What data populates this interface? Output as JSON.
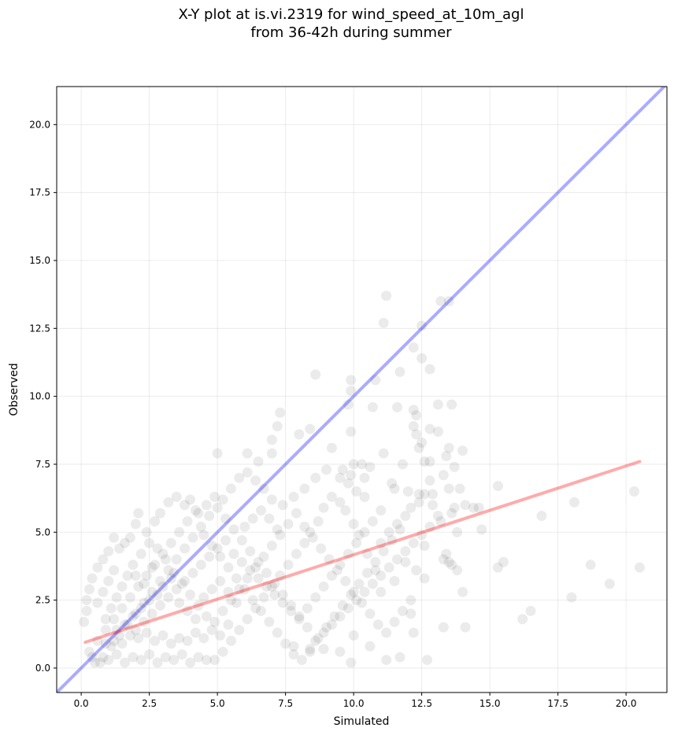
{
  "chart_data": {
    "type": "scatter",
    "title_line1": "X-Y plot at is.vi.2319 for wind_speed_at_10m_agl",
    "title_line2": "from 36-42h during summer",
    "xlabel": "Simulated",
    "ylabel": "Observed",
    "xlim": [
      -0.9,
      21.5
    ],
    "ylim": [
      -0.9,
      21.4
    ],
    "xticks": [
      "0.0",
      "2.5",
      "5.0",
      "7.5",
      "10.0",
      "12.5",
      "15.0",
      "17.5",
      "20.0"
    ],
    "yticks": [
      "0.0",
      "2.5",
      "5.0",
      "7.5",
      "10.0",
      "12.5",
      "15.0",
      "17.5",
      "20.0"
    ],
    "grid": true,
    "point_color": "#000000",
    "point_alpha": 0.08,
    "identity_line": {
      "color": "#0000ff",
      "x": [
        -0.9,
        21.5
      ],
      "y": [
        -0.9,
        21.5
      ]
    },
    "fit_line": {
      "color": "#ff0000",
      "x": [
        0.15,
        20.5
      ],
      "y": [
        0.95,
        7.6
      ]
    },
    "points": [
      [
        11.2,
        13.7
      ],
      [
        13.5,
        13.5
      ],
      [
        13.2,
        13.5
      ],
      [
        11.1,
        12.7
      ],
      [
        12.5,
        12.6
      ],
      [
        12.2,
        11.8
      ],
      [
        12.5,
        11.4
      ],
      [
        12.8,
        11.0
      ],
      [
        11.7,
        10.9
      ],
      [
        8.6,
        10.8
      ],
      [
        9.9,
        10.6
      ],
      [
        10.8,
        10.6
      ],
      [
        9.9,
        10.2
      ],
      [
        9.8,
        9.7
      ],
      [
        10.7,
        9.6
      ],
      [
        11.6,
        9.6
      ],
      [
        13.1,
        9.7
      ],
      [
        13.6,
        9.7
      ],
      [
        12.2,
        9.5
      ],
      [
        12.3,
        9.3
      ],
      [
        7.3,
        9.4
      ],
      [
        7.2,
        8.9
      ],
      [
        12.2,
        8.9
      ],
      [
        12.3,
        8.6
      ],
      [
        9.9,
        8.7
      ],
      [
        8.4,
        8.8
      ],
      [
        8.0,
        8.6
      ],
      [
        12.5,
        8.3
      ],
      [
        12.8,
        8.8
      ],
      [
        7.0,
        8.4
      ],
      [
        13.1,
        8.7
      ],
      [
        9.2,
        8.1
      ],
      [
        12.4,
        8.1
      ],
      [
        13.5,
        8.1
      ],
      [
        14.0,
        8.0
      ],
      [
        11.1,
        7.9
      ],
      [
        5.0,
        7.9
      ],
      [
        6.1,
        7.9
      ],
      [
        7.0,
        7.9
      ],
      [
        6.5,
        7.6
      ],
      [
        12.6,
        7.6
      ],
      [
        12.8,
        7.6
      ],
      [
        13.4,
        7.8
      ],
      [
        10.0,
        7.5
      ],
      [
        10.3,
        7.5
      ],
      [
        10.6,
        7.4
      ],
      [
        11.8,
        7.5
      ],
      [
        9.6,
        7.3
      ],
      [
        9.9,
        7.1
      ],
      [
        10.4,
        7.0
      ],
      [
        13.7,
        7.4
      ],
      [
        13.3,
        7.1
      ],
      [
        12.8,
        6.9
      ],
      [
        11.4,
        6.8
      ],
      [
        11.5,
        6.6
      ],
      [
        12.0,
        6.5
      ],
      [
        12.4,
        6.4
      ],
      [
        12.9,
        6.4
      ],
      [
        13.5,
        6.6
      ],
      [
        13.9,
        6.6
      ],
      [
        14.6,
        5.9
      ],
      [
        14.4,
        5.9
      ],
      [
        14.1,
        6.0
      ],
      [
        13.7,
        5.9
      ],
      [
        15.3,
        6.7
      ],
      [
        13.6,
        5.7
      ],
      [
        13.2,
        5.4
      ],
      [
        14.7,
        5.1
      ],
      [
        13.8,
        5.0
      ],
      [
        13.4,
        4.2
      ],
      [
        13.3,
        4.0
      ],
      [
        13.5,
        3.9
      ],
      [
        13.6,
        3.8
      ],
      [
        13.8,
        3.6
      ],
      [
        14.0,
        2.8
      ],
      [
        14.1,
        1.5
      ],
      [
        13.3,
        1.5
      ],
      [
        15.3,
        3.7
      ],
      [
        15.5,
        3.9
      ],
      [
        16.9,
        5.6
      ],
      [
        18.1,
        6.1
      ],
      [
        20.3,
        6.5
      ],
      [
        20.5,
        3.7
      ],
      [
        18.7,
        3.8
      ],
      [
        19.4,
        3.1
      ],
      [
        18.0,
        2.6
      ],
      [
        16.5,
        2.1
      ],
      [
        16.2,
        1.8
      ],
      [
        12.2,
        1.3
      ],
      [
        12.7,
        0.3
      ],
      [
        12.1,
        2.0
      ],
      [
        11.7,
        0.4
      ],
      [
        11.2,
        0.3
      ],
      [
        10.6,
        0.8
      ],
      [
        9.9,
        0.2
      ],
      [
        10.0,
        1.2
      ],
      [
        9.5,
        0.6
      ],
      [
        8.9,
        0.7
      ],
      [
        8.4,
        0.6
      ],
      [
        7.8,
        0.8
      ],
      [
        12.6,
        3.3
      ],
      [
        12.3,
        3.6
      ],
      [
        12.6,
        4.5
      ],
      [
        11.9,
        3.9
      ],
      [
        11.5,
        3.2
      ],
      [
        11.0,
        2.8
      ],
      [
        10.8,
        3.6
      ],
      [
        10.5,
        4.2
      ],
      [
        10.2,
        4.9
      ],
      [
        10.0,
        5.3
      ],
      [
        9.7,
        5.8
      ],
      [
        9.5,
        6.1
      ],
      [
        9.2,
        6.3
      ],
      [
        8.9,
        5.9
      ],
      [
        8.7,
        5.4
      ],
      [
        8.4,
        5.0
      ],
      [
        8.2,
        4.6
      ],
      [
        7.9,
        4.2
      ],
      [
        7.6,
        3.8
      ],
      [
        7.3,
        3.4
      ],
      [
        7.0,
        3.0
      ],
      [
        6.7,
        2.6
      ],
      [
        6.4,
        2.2
      ],
      [
        6.1,
        1.8
      ],
      [
        5.8,
        1.4
      ],
      [
        5.5,
        1.0
      ],
      [
        5.2,
        0.6
      ],
      [
        4.9,
        0.3
      ],
      [
        10.4,
        6.3
      ],
      [
        10.1,
        6.5
      ],
      [
        9.8,
        6.8
      ],
      [
        9.5,
        7.0
      ],
      [
        9.0,
        7.3
      ],
      [
        8.6,
        7.0
      ],
      [
        8.2,
        6.6
      ],
      [
        7.8,
        6.3
      ],
      [
        7.4,
        6.0
      ],
      [
        7.0,
        6.2
      ],
      [
        6.7,
        6.6
      ],
      [
        6.4,
        6.9
      ],
      [
        6.1,
        7.2
      ],
      [
        5.8,
        7.0
      ],
      [
        5.5,
        6.6
      ],
      [
        5.2,
        6.2
      ],
      [
        4.9,
        6.3
      ],
      [
        4.6,
        6.0
      ],
      [
        4.3,
        5.7
      ],
      [
        4.0,
        6.2
      ],
      [
        3.8,
        6.0
      ],
      [
        3.5,
        6.3
      ],
      [
        3.2,
        6.1
      ],
      [
        2.9,
        5.7
      ],
      [
        2.7,
        5.4
      ],
      [
        2.4,
        5.0
      ],
      [
        2.1,
        5.7
      ],
      [
        2.0,
        5.3
      ],
      [
        1.8,
        4.8
      ],
      [
        1.6,
        4.6
      ],
      [
        1.4,
        4.4
      ],
      [
        1.2,
        4.8
      ],
      [
        1.0,
        4.3
      ],
      [
        0.8,
        4.0
      ],
      [
        0.6,
        3.7
      ],
      [
        0.4,
        3.3
      ],
      [
        0.3,
        2.9
      ],
      [
        0.2,
        2.5
      ],
      [
        0.2,
        2.1
      ],
      [
        0.1,
        1.7
      ],
      [
        11.0,
        4.6
      ],
      [
        11.3,
        5.0
      ],
      [
        11.6,
        5.3
      ],
      [
        11.9,
        5.6
      ],
      [
        12.1,
        5.9
      ],
      [
        12.4,
        6.1
      ],
      [
        12.6,
        6.4
      ],
      [
        12.9,
        6.0
      ],
      [
        13.1,
        5.6
      ],
      [
        12.8,
        5.2
      ],
      [
        12.5,
        4.9
      ],
      [
        12.2,
        4.6
      ],
      [
        11.9,
        4.3
      ],
      [
        11.6,
        4.0
      ],
      [
        11.3,
        3.7
      ],
      [
        11.0,
        3.4
      ],
      [
        10.7,
        3.1
      ],
      [
        10.4,
        2.8
      ],
      [
        10.1,
        2.5
      ],
      [
        9.8,
        2.2
      ],
      [
        9.5,
        1.9
      ],
      [
        9.2,
        1.6
      ],
      [
        8.9,
        1.3
      ],
      [
        8.6,
        1.0
      ],
      [
        8.3,
        1.5
      ],
      [
        8.0,
        1.9
      ],
      [
        7.7,
        2.3
      ],
      [
        7.4,
        2.7
      ],
      [
        7.1,
        3.1
      ],
      [
        6.8,
        3.5
      ],
      [
        6.5,
        3.9
      ],
      [
        6.2,
        4.3
      ],
      [
        5.9,
        4.7
      ],
      [
        5.6,
        5.1
      ],
      [
        5.3,
        5.5
      ],
      [
        5.0,
        5.9
      ],
      [
        4.7,
        5.6
      ],
      [
        4.4,
        5.2
      ],
      [
        4.1,
        4.8
      ],
      [
        3.8,
        4.4
      ],
      [
        3.5,
        4.0
      ],
      [
        3.2,
        3.6
      ],
      [
        2.9,
        3.2
      ],
      [
        2.6,
        2.8
      ],
      [
        2.3,
        2.4
      ],
      [
        2.0,
        2.0
      ],
      [
        1.7,
        1.6
      ],
      [
        1.4,
        1.2
      ],
      [
        1.1,
        0.8
      ],
      [
        0.8,
        0.4
      ],
      [
        0.5,
        0.2
      ],
      [
        0.3,
        0.6
      ],
      [
        0.6,
        1.0
      ],
      [
        0.9,
        1.4
      ],
      [
        1.2,
        1.8
      ],
      [
        1.5,
        2.2
      ],
      [
        1.8,
        2.6
      ],
      [
        2.1,
        3.0
      ],
      [
        2.4,
        3.4
      ],
      [
        2.7,
        3.8
      ],
      [
        3.0,
        4.2
      ],
      [
        3.3,
        4.6
      ],
      [
        3.6,
        5.0
      ],
      [
        3.9,
        5.4
      ],
      [
        4.2,
        5.8
      ],
      [
        4.5,
        4.9
      ],
      [
        4.8,
        4.5
      ],
      [
        5.1,
        4.1
      ],
      [
        5.4,
        3.7
      ],
      [
        5.7,
        3.3
      ],
      [
        6.0,
        2.9
      ],
      [
        6.3,
        2.5
      ],
      [
        6.6,
        2.1
      ],
      [
        6.9,
        1.7
      ],
      [
        7.2,
        1.3
      ],
      [
        7.5,
        0.9
      ],
      [
        7.8,
        0.5
      ],
      [
        8.1,
        0.3
      ],
      [
        8.4,
        0.7
      ],
      [
        8.7,
        1.1
      ],
      [
        9.0,
        1.5
      ],
      [
        9.3,
        1.9
      ],
      [
        9.6,
        2.3
      ],
      [
        9.9,
        2.7
      ],
      [
        10.2,
        3.1
      ],
      [
        10.5,
        3.5
      ],
      [
        10.8,
        3.9
      ],
      [
        11.1,
        4.3
      ],
      [
        11.4,
        4.7
      ],
      [
        11.7,
        5.1
      ],
      [
        1.0,
        0.3
      ],
      [
        1.3,
        0.5
      ],
      [
        1.6,
        0.2
      ],
      [
        1.9,
        0.4
      ],
      [
        2.2,
        0.3
      ],
      [
        2.5,
        0.5
      ],
      [
        2.8,
        0.2
      ],
      [
        3.1,
        0.4
      ],
      [
        3.4,
        0.3
      ],
      [
        3.7,
        0.5
      ],
      [
        4.0,
        0.2
      ],
      [
        4.3,
        0.4
      ],
      [
        4.6,
        0.3
      ],
      [
        0.4,
        0.4
      ],
      [
        0.7,
        0.2
      ],
      [
        1.2,
        1.0
      ],
      [
        1.5,
        0.9
      ],
      [
        1.8,
        1.2
      ],
      [
        2.1,
        1.1
      ],
      [
        2.4,
        1.3
      ],
      [
        2.7,
        1.0
      ],
      [
        3.0,
        1.2
      ],
      [
        3.3,
        0.9
      ],
      [
        3.6,
        1.1
      ],
      [
        3.9,
        1.0
      ],
      [
        4.2,
        1.3
      ],
      [
        4.5,
        1.1
      ],
      [
        4.8,
        1.4
      ],
      [
        5.1,
        1.2
      ],
      [
        5.4,
        1.6
      ],
      [
        0.9,
        1.8
      ],
      [
        1.1,
        2.2
      ],
      [
        1.3,
        2.6
      ],
      [
        1.5,
        3.0
      ],
      [
        1.7,
        3.4
      ],
      [
        1.9,
        3.8
      ],
      [
        2.2,
        4.2
      ],
      [
        2.5,
        4.6
      ],
      [
        2.8,
        4.4
      ],
      [
        3.1,
        4.0
      ],
      [
        3.4,
        3.5
      ],
      [
        3.7,
        3.1
      ],
      [
        4.0,
        2.7
      ],
      [
        4.3,
        2.3
      ],
      [
        4.6,
        1.9
      ],
      [
        4.9,
        1.7
      ],
      [
        5.2,
        2.1
      ],
      [
        5.5,
        2.5
      ],
      [
        5.8,
        2.9
      ],
      [
        6.1,
        3.3
      ],
      [
        6.4,
        3.7
      ],
      [
        6.7,
        4.1
      ],
      [
        7.0,
        4.5
      ],
      [
        7.3,
        4.9
      ],
      [
        7.6,
        5.3
      ],
      [
        7.9,
        5.7
      ],
      [
        8.2,
        5.2
      ],
      [
        8.5,
        4.8
      ],
      [
        8.8,
        4.4
      ],
      [
        9.1,
        4.0
      ],
      [
        9.4,
        3.6
      ],
      [
        9.7,
        3.2
      ],
      [
        10.0,
        2.8
      ],
      [
        10.3,
        2.4
      ],
      [
        10.6,
        2.0
      ],
      [
        10.9,
        1.6
      ],
      [
        11.2,
        1.3
      ],
      [
        11.5,
        1.7
      ],
      [
        11.8,
        2.1
      ],
      [
        12.1,
        2.5
      ],
      [
        0.6,
        2.4
      ],
      [
        0.8,
        2.8
      ],
      [
        1.0,
        3.2
      ],
      [
        1.2,
        3.6
      ],
      [
        2.0,
        1.4
      ],
      [
        2.3,
        1.7
      ],
      [
        2.6,
        2.0
      ],
      [
        2.9,
        2.3
      ],
      [
        3.2,
        2.6
      ],
      [
        3.5,
        2.9
      ],
      [
        3.8,
        3.2
      ],
      [
        4.1,
        3.5
      ],
      [
        4.4,
        3.8
      ],
      [
        4.7,
        4.1
      ],
      [
        5.0,
        4.4
      ],
      [
        5.3,
        4.7
      ],
      [
        5.6,
        4.2
      ],
      [
        5.9,
        3.9
      ],
      [
        6.2,
        3.6
      ],
      [
        6.5,
        3.3
      ],
      [
        6.8,
        3.0
      ],
      [
        7.1,
        2.7
      ],
      [
        7.4,
        2.4
      ],
      [
        7.7,
        2.1
      ],
      [
        8.0,
        1.8
      ],
      [
        8.3,
        2.2
      ],
      [
        8.6,
        2.6
      ],
      [
        8.9,
        3.0
      ],
      [
        9.2,
        3.4
      ],
      [
        9.5,
        3.8
      ],
      [
        9.8,
        4.2
      ],
      [
        10.1,
        4.6
      ],
      [
        10.4,
        5.0
      ],
      [
        10.7,
        5.4
      ],
      [
        11.0,
        5.8
      ],
      [
        6.0,
        5.2
      ],
      [
        6.3,
        5.5
      ],
      [
        6.6,
        5.8
      ],
      [
        6.9,
        5.5
      ],
      [
        7.2,
        5.1
      ],
      [
        3.0,
        3.0
      ],
      [
        3.3,
        3.3
      ],
      [
        3.6,
        2.4
      ],
      [
        3.9,
        2.1
      ],
      [
        4.2,
        1.8
      ],
      [
        4.5,
        2.6
      ],
      [
        4.8,
        2.9
      ],
      [
        5.1,
        3.2
      ],
      [
        5.4,
        2.8
      ],
      [
        5.7,
        2.4
      ],
      [
        2.0,
        3.4
      ],
      [
        2.3,
        3.1
      ],
      [
        2.6,
        3.7
      ],
      [
        1.6,
        1.6
      ],
      [
        1.9,
        1.9
      ],
      [
        2.2,
        2.2
      ],
      [
        2.5,
        2.5
      ],
      [
        2.8,
        2.7
      ],
      [
        1.3,
        1.4
      ],
      [
        0.9,
        0.9
      ]
    ]
  }
}
